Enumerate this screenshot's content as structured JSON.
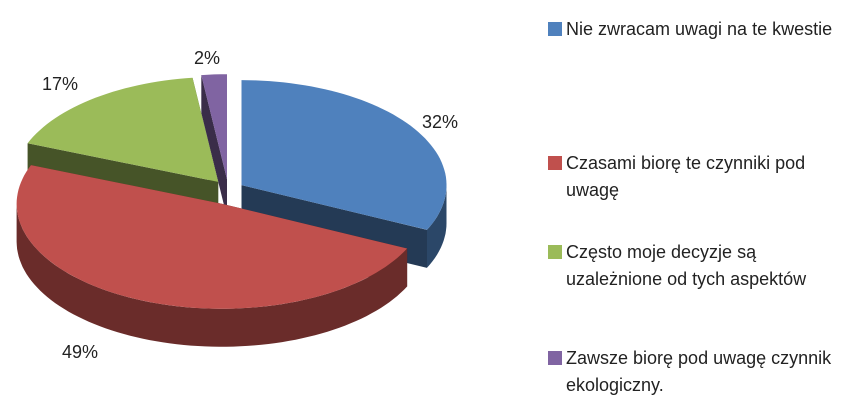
{
  "chart_data": {
    "type": "pie3d",
    "categories": [
      "Nie zwracam uwagi na te kwestie",
      "Czasami biorę te czynniki pod uwagę",
      "Często moje decyzje są uzależnione od tych aspektów",
      "Zawsze biorę pod uwagę czynnik ekologiczny."
    ],
    "values": [
      32,
      49,
      17,
      2
    ],
    "value_labels": [
      "32%",
      "49%",
      "17%",
      "2%"
    ],
    "colors": [
      "#4f81bd",
      "#c0504d",
      "#9bbb59",
      "#8064a2"
    ],
    "legend": "right"
  }
}
